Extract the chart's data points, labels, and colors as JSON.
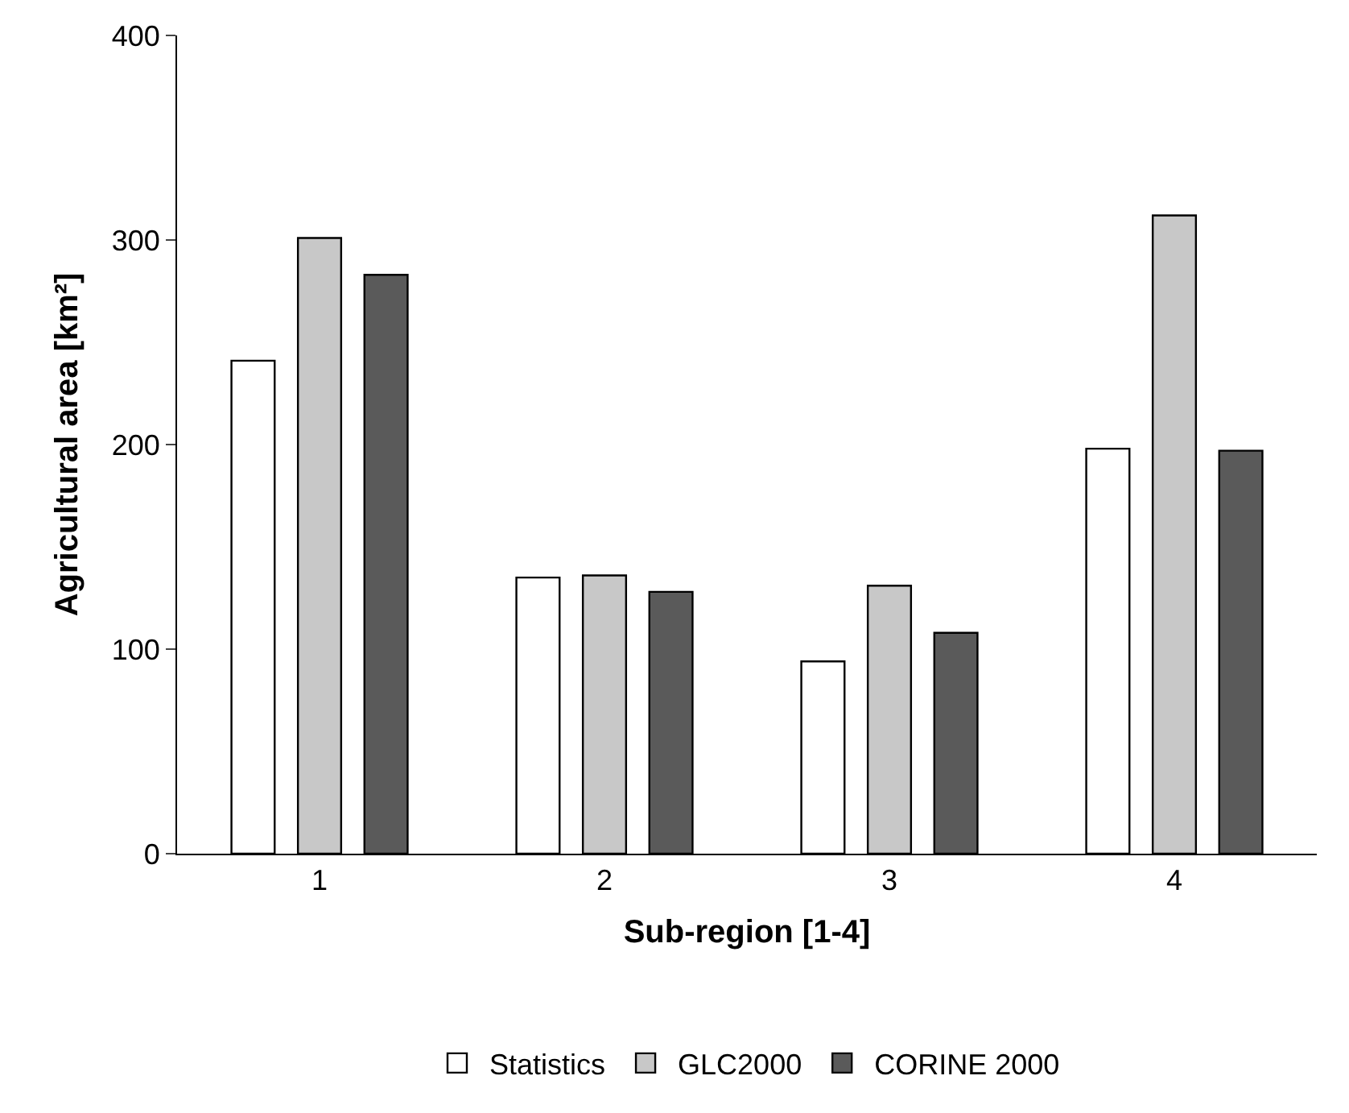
{
  "chart_data": {
    "type": "bar",
    "xlabel": "Sub-region [1-4]",
    "ylabel": "Agricultural area [km²]",
    "categories": [
      "1",
      "2",
      "3",
      "4"
    ],
    "series": [
      {
        "name": "Statistics",
        "color": "#ffffff",
        "values": [
          241,
          135,
          94,
          198
        ]
      },
      {
        "name": "GLC2000",
        "color": "#c8c8c8",
        "values": [
          301,
          136,
          131,
          312
        ]
      },
      {
        "name": "CORINE 2000",
        "color": "#5a5a5a",
        "values": [
          283,
          128,
          108,
          197
        ]
      }
    ],
    "ylim": [
      0,
      400
    ],
    "yticks": [
      0,
      100,
      200,
      300,
      400
    ],
    "legend": "bottom"
  }
}
